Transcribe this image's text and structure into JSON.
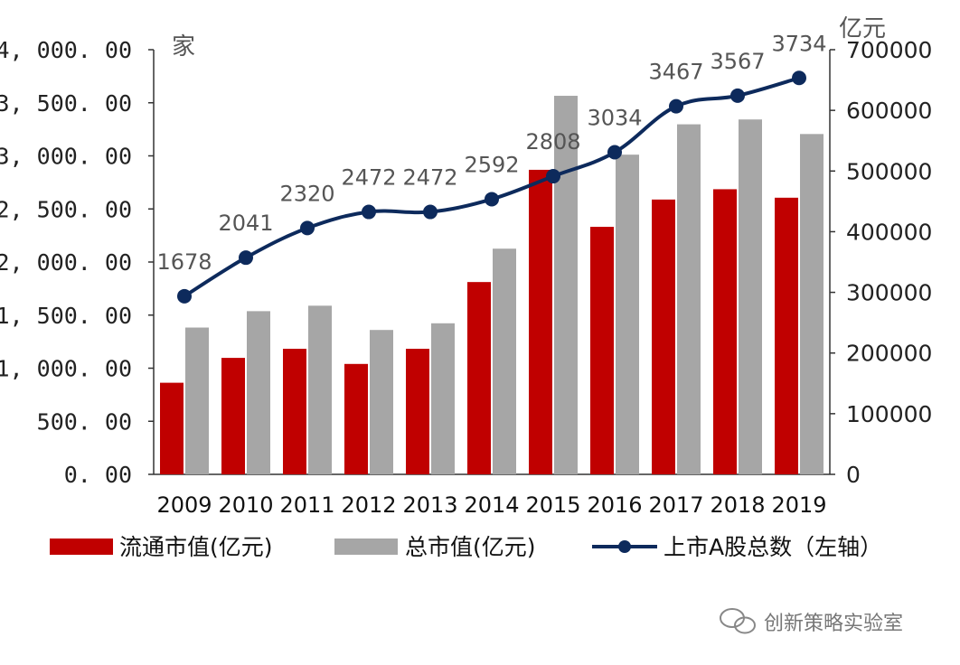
{
  "chart_data": {
    "type": "bar",
    "categories": [
      "2009",
      "2010",
      "2011",
      "2012",
      "2013",
      "2014",
      "2015",
      "2016",
      "2017",
      "2018",
      "2019"
    ],
    "series": [
      {
        "name": "流通市值(亿元)",
        "axis": "right",
        "color": "#c00000",
        "values": [
          151000,
          192000,
          207000,
          182000,
          207000,
          317000,
          502000,
          408000,
          453000,
          470000,
          456000
        ]
      },
      {
        "name": "总市值(亿元)",
        "axis": "right",
        "color": "#a6a6a6",
        "values": [
          242000,
          269000,
          278000,
          238000,
          249000,
          372000,
          624000,
          527000,
          577000,
          585000,
          561000
        ]
      },
      {
        "name": "上市A股总数（左轴）",
        "axis": "left",
        "type": "line",
        "color": "#0d2a5c",
        "values": [
          1678,
          2041,
          2320,
          2472,
          2472,
          2592,
          2808,
          3034,
          3467,
          3567,
          3734
        ],
        "labels": [
          "1678",
          "2041",
          "2320",
          "2472",
          "2472",
          "2592",
          "2808",
          "3034",
          "3467",
          "3567",
          "3734"
        ]
      }
    ],
    "left_axis": {
      "unit": "家",
      "ylim": [
        0,
        4000
      ],
      "ticks": [
        "0. 00",
        "500. 00",
        "1, 000. 00",
        "1, 500. 00",
        "2, 000. 00",
        "2, 500. 00",
        "3, 000. 00",
        "3, 500. 00",
        "4, 000. 00"
      ]
    },
    "right_axis": {
      "unit": "亿元",
      "ylim": [
        0,
        700000
      ],
      "ticks": [
        "0",
        "100000",
        "200000",
        "300000",
        "400000",
        "500000",
        "600000",
        "700000"
      ]
    },
    "legend": [
      "流通市值(亿元)",
      "总市值(亿元)",
      "上市A股总数（左轴）"
    ],
    "legend_position": "bottom"
  },
  "watermark": {
    "text": "创新策略实验室",
    "icon": "wechat-icon"
  }
}
